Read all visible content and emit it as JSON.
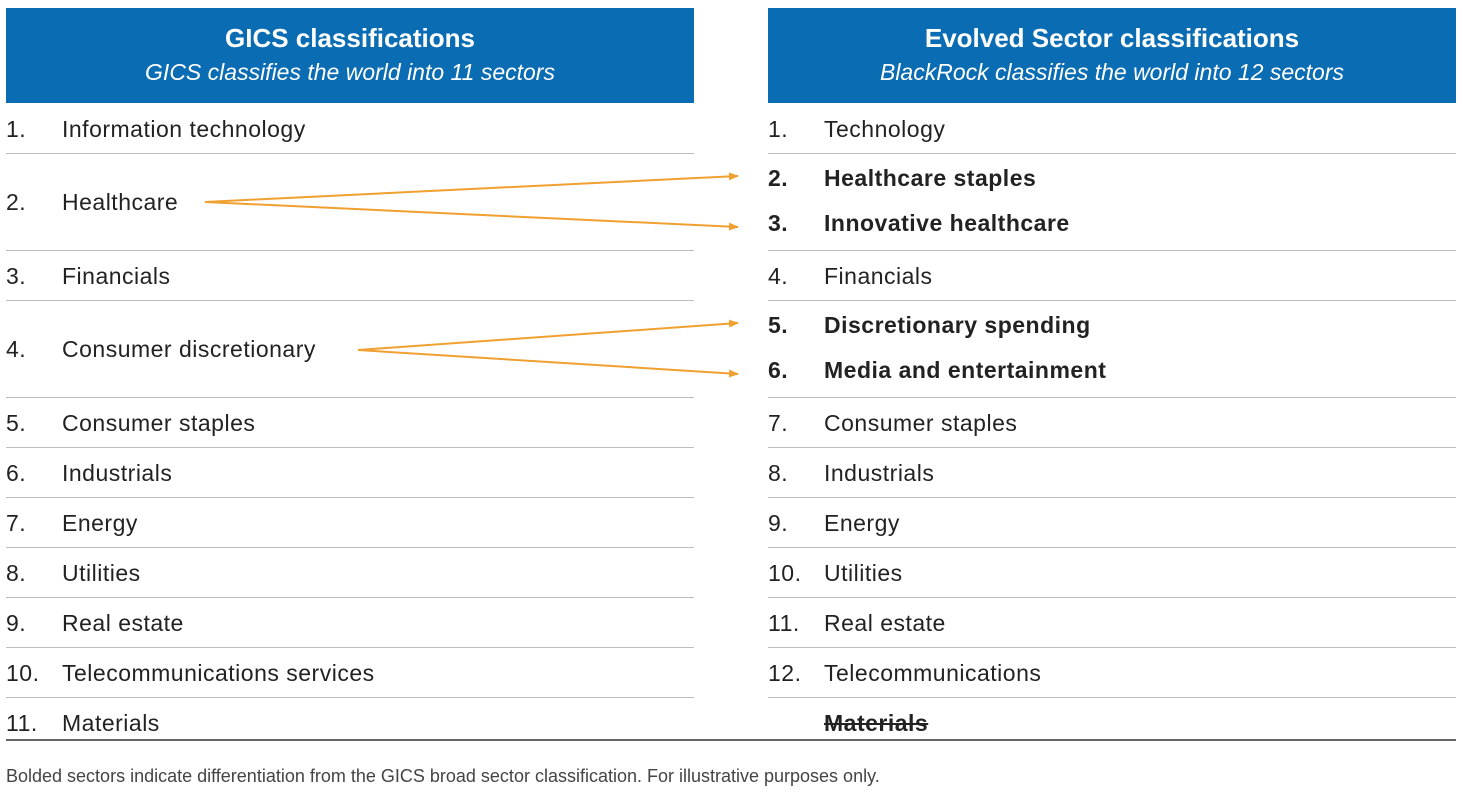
{
  "left": {
    "title": "GICS classifications",
    "subtitle": "GICS classifies the world into 11 sectors",
    "items": [
      {
        "num": "1.",
        "label": "Information technology"
      },
      {
        "num": "2.",
        "label": "Healthcare"
      },
      {
        "num": "3.",
        "label": "Financials"
      },
      {
        "num": "4.",
        "label": "Consumer discretionary"
      },
      {
        "num": "5.",
        "label": "Consumer staples"
      },
      {
        "num": "6.",
        "label": "Industrials"
      },
      {
        "num": "7.",
        "label": "Energy"
      },
      {
        "num": "8.",
        "label": "Utilities"
      },
      {
        "num": "9.",
        "label": "Real estate"
      },
      {
        "num": "10.",
        "label": "Telecommunications services"
      },
      {
        "num": "11.",
        "label": "Materials"
      }
    ]
  },
  "right": {
    "title": "Evolved Sector classifications",
    "subtitle": "BlackRock classifies the world into 12 sectors",
    "items": [
      {
        "num": "1.",
        "label": "Technology"
      },
      {
        "num": "2.",
        "label": "Healthcare staples"
      },
      {
        "num": "3.",
        "label": "Innovative healthcare"
      },
      {
        "num": "4.",
        "label": "Financials"
      },
      {
        "num": "5.",
        "label": "Discretionary spending"
      },
      {
        "num": "6.",
        "label": "Media and entertainment"
      },
      {
        "num": "7.",
        "label": "Consumer staples"
      },
      {
        "num": "8.",
        "label": "Industrials"
      },
      {
        "num": "9.",
        "label": "Energy"
      },
      {
        "num": "10.",
        "label": "Utilities"
      },
      {
        "num": "11.",
        "label": "Real estate"
      },
      {
        "num": "12.",
        "label": "Telecommunications"
      },
      {
        "num": "",
        "label": "Materials"
      }
    ]
  },
  "footnote": "Bolded sectors indicate differentiation from the GICS broad sector classification. For illustrative purposes only.",
  "colors": {
    "header": "#0a6cb3",
    "arrow": "#f0a030",
    "divider": "#bdbdbd"
  }
}
